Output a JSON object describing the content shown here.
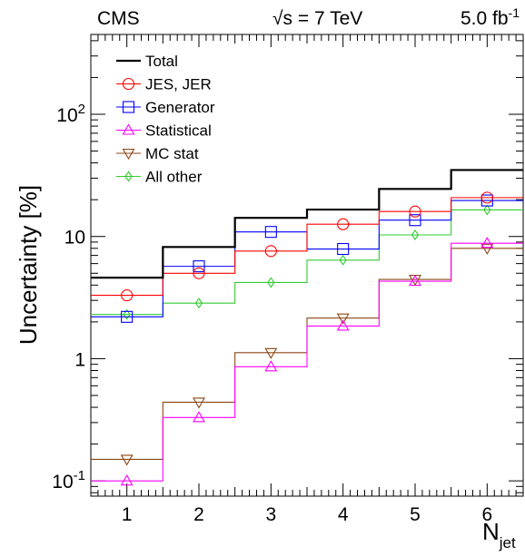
{
  "header": {
    "experiment": "CMS",
    "energy_prefix": "√s = 7 TeV",
    "lumi": "5.0 fb",
    "lumi_sup": "-1"
  },
  "chart_data": {
    "type": "line",
    "step": true,
    "ylabel": "Uncertainty [%]",
    "xlabel_main": "N",
    "xlabel_sub": "jet",
    "ylog": true,
    "ylim": [
      0.075,
      450
    ],
    "xlim": [
      0.5,
      6.5
    ],
    "x": [
      1,
      2,
      3,
      4,
      5,
      6
    ],
    "xticks": [
      "1",
      "2",
      "3",
      "4",
      "5",
      "6"
    ],
    "ytick_labels": [
      {
        "value": 0.1,
        "base": "10",
        "exp": "-1"
      },
      {
        "value": 1,
        "base": "1",
        "exp": ""
      },
      {
        "value": 10,
        "base": "10",
        "exp": ""
      },
      {
        "value": 100,
        "base": "10",
        "exp": "2"
      }
    ],
    "legend_position": "top-left",
    "grid": false,
    "series": [
      {
        "name": "Total",
        "color": "#000000",
        "marker": "none",
        "values": [
          4.6,
          8.2,
          14.2,
          16.6,
          24.5,
          35.0
        ]
      },
      {
        "name": "JES, JER",
        "color": "#ff0000",
        "marker": "circle",
        "values": [
          3.3,
          5.0,
          7.6,
          12.6,
          16.0,
          20.8
        ]
      },
      {
        "name": "Generator",
        "color": "#0000ff",
        "marker": "square",
        "values": [
          2.2,
          5.7,
          10.9,
          7.9,
          13.6,
          19.7
        ]
      },
      {
        "name": "Statistical",
        "color": "#ff00ff",
        "marker": "triangle-up",
        "values": [
          0.1,
          0.33,
          0.86,
          1.85,
          4.3,
          8.8
        ]
      },
      {
        "name": "MC stat",
        "color": "#8b4513",
        "marker": "triangle-down",
        "values": [
          0.15,
          0.44,
          1.12,
          2.15,
          4.45,
          8.0
        ]
      },
      {
        "name": "All other",
        "color": "#33cc33",
        "marker": "diamond",
        "values": [
          2.3,
          2.85,
          4.2,
          6.4,
          10.3,
          16.5
        ]
      }
    ]
  }
}
